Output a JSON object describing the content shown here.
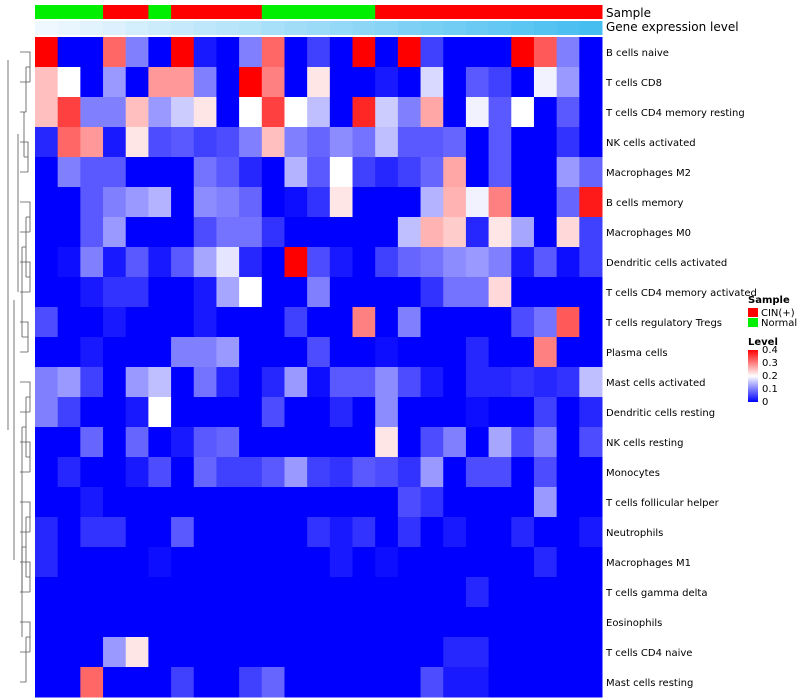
{
  "chart_data": {
    "type": "heatmap",
    "title": "",
    "annotation_tracks": [
      {
        "name": "Sample",
        "values": [
          "Normal",
          "Normal",
          "Normal",
          "CIN(+)",
          "CIN(+)",
          "Normal",
          "CIN(+)",
          "CIN(+)",
          "CIN(+)",
          "CIN(+)",
          "Normal",
          "Normal",
          "Normal",
          "Normal",
          "Normal",
          "CIN(+)",
          "CIN(+)",
          "CIN(+)",
          "CIN(+)",
          "CIN(+)",
          "CIN(+)",
          "CIN(+)",
          "CIN(+)",
          "CIN(+)",
          "CIN(+)"
        ]
      },
      {
        "name": "Gene expression level",
        "values": [
          0.0,
          0.04,
          0.08,
          0.12,
          0.17,
          0.21,
          0.25,
          0.29,
          0.33,
          0.37,
          0.42,
          0.46,
          0.5,
          0.54,
          0.58,
          0.62,
          0.67,
          0.71,
          0.75,
          0.79,
          0.83,
          0.87,
          0.92,
          0.96,
          1.0
        ]
      }
    ],
    "rows": [
      "B cells naive",
      "T cells CD8",
      "T cells CD4 memory resting",
      "NK cells activated",
      "Macrophages M2",
      "B cells memory",
      "Macrophages M0",
      "Dendritic cells activated",
      "T cells CD4 memory activated",
      "T cells regulatory  Tregs",
      "Plasma cells",
      "Mast cells activated",
      "Dendritic cells resting",
      "NK cells resting",
      "Monocytes",
      "T cells follicular helper",
      "Neutrophils",
      "Macrophages M1",
      "T cells gamma delta",
      "Eosinophils",
      "T cells CD4 naive",
      "Mast cells resting"
    ],
    "values": [
      [
        0.4,
        0.0,
        0.0,
        0.32,
        0.1,
        0.0,
        0.4,
        0.02,
        0.0,
        0.1,
        0.32,
        0.0,
        0.05,
        0.0,
        0.4,
        0.0,
        0.4,
        0.05,
        0.0,
        0.0,
        0.0,
        0.4,
        0.33,
        0.1,
        0.0
      ],
      [
        0.25,
        0.2,
        0.0,
        0.12,
        0.0,
        0.28,
        0.28,
        0.1,
        0.0,
        0.4,
        0.3,
        0.0,
        0.22,
        0.0,
        0.0,
        0.02,
        0.0,
        0.17,
        0.0,
        0.07,
        0.05,
        0.0,
        0.19,
        0.12,
        0.0
      ],
      [
        0.25,
        0.35,
        0.1,
        0.1,
        0.25,
        0.12,
        0.16,
        0.22,
        0.0,
        0.2,
        0.35,
        0.2,
        0.15,
        0.0,
        0.37,
        0.16,
        0.1,
        0.27,
        0.0,
        0.19,
        0.07,
        0.2,
        0.0,
        0.07,
        0.0
      ],
      [
        0.03,
        0.32,
        0.28,
        0.02,
        0.22,
        0.06,
        0.07,
        0.05,
        0.06,
        0.1,
        0.25,
        0.1,
        0.08,
        0.11,
        0.09,
        0.15,
        0.07,
        0.07,
        0.08,
        0.0,
        0.07,
        0.0,
        0.0,
        0.04,
        0.0
      ],
      [
        0.0,
        0.1,
        0.07,
        0.07,
        0.0,
        0.0,
        0.0,
        0.09,
        0.07,
        0.03,
        0.0,
        0.14,
        0.07,
        0.2,
        0.05,
        0.03,
        0.05,
        0.08,
        0.27,
        0.0,
        0.07,
        0.0,
        0.0,
        0.12,
        0.08
      ],
      [
        0.0,
        0.0,
        0.07,
        0.1,
        0.12,
        0.14,
        0.0,
        0.11,
        0.1,
        0.08,
        0.0,
        0.01,
        0.04,
        0.22,
        0.0,
        0.0,
        0.0,
        0.14,
        0.26,
        0.19,
        0.3,
        0.0,
        0.0,
        0.08,
        0.38
      ],
      [
        0.0,
        0.0,
        0.07,
        0.12,
        0.0,
        0.0,
        0.0,
        0.06,
        0.09,
        0.09,
        0.04,
        0.0,
        0.0,
        0.0,
        0.0,
        0.0,
        0.15,
        0.26,
        0.24,
        0.03,
        0.22,
        0.13,
        0.0,
        0.23,
        0.05
      ],
      [
        0.0,
        0.01,
        0.1,
        0.02,
        0.07,
        0.02,
        0.07,
        0.13,
        0.18,
        0.03,
        0.0,
        0.4,
        0.06,
        0.02,
        0.0,
        0.05,
        0.08,
        0.09,
        0.11,
        0.12,
        0.1,
        0.02,
        0.07,
        0.01,
        0.05
      ],
      [
        0.0,
        0.0,
        0.02,
        0.04,
        0.04,
        0.0,
        0.0,
        0.02,
        0.13,
        0.2,
        0.0,
        0.0,
        0.1,
        0.0,
        0.0,
        0.0,
        0.0,
        0.04,
        0.09,
        0.09,
        0.23,
        0.0,
        0.0,
        0.0,
        0.0
      ],
      [
        0.06,
        0.0,
        0.0,
        0.02,
        0.0,
        0.0,
        0.0,
        0.02,
        0.0,
        0.0,
        0.0,
        0.05,
        0.0,
        0.0,
        0.3,
        0.0,
        0.1,
        0.0,
        0.0,
        0.0,
        0.0,
        0.06,
        0.09,
        0.33,
        0.0
      ],
      [
        0.0,
        0.0,
        0.02,
        0.0,
        0.0,
        0.0,
        0.1,
        0.1,
        0.12,
        0.0,
        0.0,
        0.0,
        0.06,
        0.0,
        0.0,
        0.01,
        0.0,
        0.0,
        0.0,
        0.03,
        0.0,
        0.0,
        0.3,
        0.0,
        0.0
      ],
      [
        0.1,
        0.12,
        0.05,
        0.0,
        0.12,
        0.15,
        0.0,
        0.09,
        0.03,
        0.0,
        0.03,
        0.12,
        0.01,
        0.07,
        0.07,
        0.11,
        0.06,
        0.02,
        0.0,
        0.03,
        0.03,
        0.04,
        0.03,
        0.04,
        0.15
      ],
      [
        0.1,
        0.05,
        0.0,
        0.0,
        0.02,
        0.2,
        0.0,
        0.0,
        0.0,
        0.0,
        0.06,
        0.0,
        0.0,
        0.03,
        0.0,
        0.11,
        0.0,
        0.0,
        0.0,
        0.01,
        0.0,
        0.0,
        0.05,
        0.0,
        0.03
      ],
      [
        0.0,
        0.0,
        0.08,
        0.0,
        0.08,
        0.0,
        0.02,
        0.07,
        0.08,
        0.0,
        0.0,
        0.0,
        0.0,
        0.0,
        0.0,
        0.22,
        0.0,
        0.06,
        0.1,
        0.0,
        0.13,
        0.06,
        0.1,
        0.0,
        0.06
      ],
      [
        0.0,
        0.03,
        0.0,
        0.0,
        0.02,
        0.06,
        0.0,
        0.08,
        0.05,
        0.05,
        0.07,
        0.12,
        0.05,
        0.04,
        0.07,
        0.06,
        0.04,
        0.12,
        0.0,
        0.06,
        0.06,
        0.0,
        0.06,
        0.0,
        0.0
      ],
      [
        0.0,
        0.0,
        0.02,
        0.0,
        0.0,
        0.0,
        0.0,
        0.0,
        0.0,
        0.0,
        0.0,
        0.0,
        0.0,
        0.0,
        0.0,
        0.0,
        0.06,
        0.04,
        0.0,
        0.0,
        0.0,
        0.0,
        0.12,
        0.0,
        0.0
      ],
      [
        0.03,
        0.0,
        0.04,
        0.04,
        0.0,
        0.0,
        0.07,
        0.0,
        0.0,
        0.0,
        0.0,
        0.0,
        0.04,
        0.02,
        0.04,
        0.0,
        0.04,
        0.0,
        0.02,
        0.0,
        0.0,
        0.03,
        0.0,
        0.0,
        0.02
      ],
      [
        0.03,
        0.0,
        0.0,
        0.0,
        0.0,
        0.01,
        0.0,
        0.0,
        0.0,
        0.0,
        0.0,
        0.0,
        0.0,
        0.02,
        0.0,
        0.01,
        0.0,
        0.0,
        0.0,
        0.0,
        0.0,
        0.0,
        0.03,
        0.0,
        0.0
      ],
      [
        0.0,
        0.0,
        0.0,
        0.0,
        0.0,
        0.0,
        0.0,
        0.0,
        0.0,
        0.0,
        0.0,
        0.0,
        0.0,
        0.0,
        0.0,
        0.0,
        0.0,
        0.0,
        0.0,
        0.03,
        0.0,
        0.0,
        0.0,
        0.0,
        0.0
      ],
      [
        0.0,
        0.0,
        0.0,
        0.0,
        0.0,
        0.0,
        0.0,
        0.0,
        0.0,
        0.0,
        0.0,
        0.0,
        0.0,
        0.0,
        0.0,
        0.0,
        0.0,
        0.0,
        0.0,
        0.0,
        0.0,
        0.0,
        0.0,
        0.0,
        0.0
      ],
      [
        0.0,
        0.0,
        0.0,
        0.12,
        0.22,
        0.0,
        0.0,
        0.0,
        0.0,
        0.0,
        0.0,
        0.0,
        0.0,
        0.0,
        0.0,
        0.0,
        0.0,
        0.0,
        0.03,
        0.03,
        0.0,
        0.0,
        0.0,
        0.0,
        0.0
      ],
      [
        0.0,
        0.0,
        0.32,
        0.0,
        0.0,
        0.0,
        0.05,
        0.0,
        0.0,
        0.05,
        0.08,
        0.0,
        0.0,
        0.0,
        0.0,
        0.0,
        0.0,
        0.06,
        0.02,
        0.02,
        0.0,
        0.0,
        0.0,
        0.0,
        0.0
      ]
    ],
    "color_scale": {
      "min": 0,
      "max": 0.4,
      "stops": [
        "#0000FF",
        "#FFFFFF",
        "#FF0000"
      ]
    },
    "legends": {
      "sample": {
        "title": "Sample",
        "entries": [
          {
            "label": "CIN(+)",
            "color": "#FF0000"
          },
          {
            "label": "Normal",
            "color": "#00EE00"
          }
        ]
      },
      "level": {
        "title": "Level",
        "ticks": [
          "0.4",
          "0.3",
          "0.2",
          "0.1",
          "0"
        ]
      }
    },
    "dendrogram": "row"
  }
}
